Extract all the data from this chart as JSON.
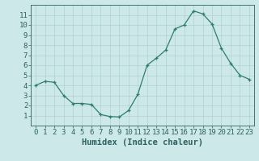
{
  "xlabel": "Humidex (Indice chaleur)",
  "x": [
    0,
    1,
    2,
    3,
    4,
    5,
    6,
    7,
    8,
    9,
    10,
    11,
    12,
    13,
    14,
    15,
    16,
    17,
    18,
    19,
    20,
    21,
    22,
    23
  ],
  "y": [
    4.0,
    4.4,
    4.3,
    3.0,
    2.2,
    2.2,
    2.1,
    1.1,
    0.9,
    0.85,
    1.5,
    3.1,
    6.0,
    6.7,
    7.5,
    9.6,
    10.0,
    11.4,
    11.1,
    10.1,
    7.7,
    6.2,
    5.0,
    4.6
  ],
  "line_color": "#2e7d6e",
  "marker": "+",
  "marker_color": "#2e7d6e",
  "bg_color": "#cce8e8",
  "grid_color": "#b0d0d0",
  "axis_color": "#2e6060",
  "label_color": "#2e6060",
  "ylim": [
    0,
    12
  ],
  "xlim": [
    -0.5,
    23.5
  ],
  "yticks": [
    1,
    2,
    3,
    4,
    5,
    6,
    7,
    8,
    9,
    10,
    11
  ],
  "xticks": [
    0,
    1,
    2,
    3,
    4,
    5,
    6,
    7,
    8,
    9,
    10,
    11,
    12,
    13,
    14,
    15,
    16,
    17,
    18,
    19,
    20,
    21,
    22,
    23
  ],
  "xlabel_fontsize": 7.5,
  "tick_fontsize": 6.5
}
